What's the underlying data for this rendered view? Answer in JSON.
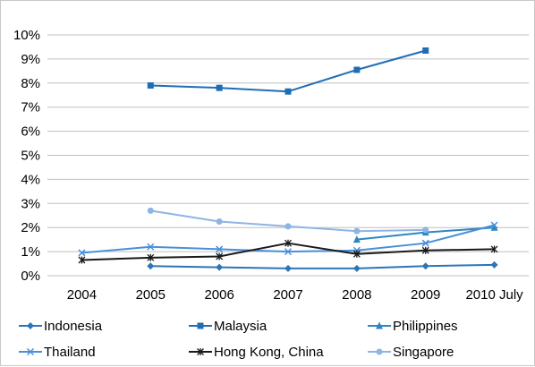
{
  "chart_data": {
    "type": "line",
    "title": "",
    "xlabel": "",
    "ylabel": "",
    "categories": [
      "2004",
      "2005",
      "2006",
      "2007",
      "2008",
      "2009",
      "2010 July"
    ],
    "y_ticks": [
      "0%",
      "1%",
      "2%",
      "3%",
      "4%",
      "5%",
      "6%",
      "7%",
      "8%",
      "9%",
      "10%"
    ],
    "ylim": [
      0,
      10
    ],
    "grid": true,
    "legend_position": "bottom",
    "series": [
      {
        "name": "Indonesia",
        "values": [
          null,
          0.4,
          0.35,
          0.3,
          0.3,
          0.4,
          0.45
        ],
        "color": "#2E75B6",
        "marker": "diamond"
      },
      {
        "name": "Malaysia",
        "values": [
          null,
          7.9,
          7.8,
          7.65,
          8.55,
          9.35,
          null
        ],
        "color": "#1F6EB5",
        "marker": "square"
      },
      {
        "name": "Philippines",
        "values": [
          null,
          null,
          null,
          null,
          1.5,
          1.8,
          2.0
        ],
        "color": "#2E86C1",
        "marker": "triangle"
      },
      {
        "name": "Thailand",
        "values": [
          0.95,
          1.2,
          1.1,
          1.0,
          1.05,
          1.35,
          2.1
        ],
        "color": "#4A90D9",
        "marker": "x"
      },
      {
        "name": "Hong Kong, China",
        "values": [
          0.65,
          0.75,
          0.8,
          1.35,
          0.9,
          1.05,
          1.1
        ],
        "color": "#1a1a1a",
        "marker": "star"
      },
      {
        "name": "Singapore",
        "values": [
          null,
          2.7,
          2.25,
          2.05,
          1.85,
          1.9,
          null
        ],
        "color": "#8EB4E3",
        "marker": "circle"
      }
    ]
  }
}
